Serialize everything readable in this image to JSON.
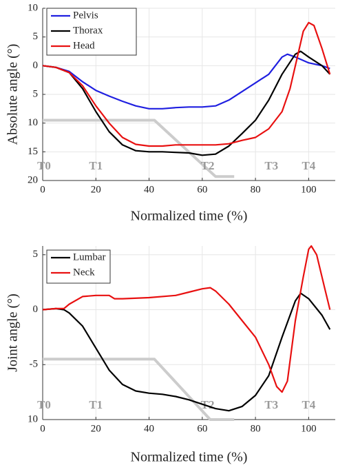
{
  "chart_data": [
    {
      "type": "line",
      "ylabel": "Absolute angle (°)",
      "xlabel": "Normalized time (%)",
      "xlim": [
        0,
        110
      ],
      "xticks": [
        0,
        20,
        40,
        60,
        80,
        100
      ],
      "ylim": [
        -20,
        10
      ],
      "yticks": [
        {
          "value": 10,
          "label": "10"
        },
        {
          "value": 5,
          "label": "5"
        },
        0,
        {
          "value": -5,
          "label": "5"
        },
        {
          "value": -10,
          "label": "10"
        },
        {
          "value": -15,
          "label": "15"
        },
        {
          "value": -20,
          "label": "20"
        }
      ],
      "grid": true,
      "legend": "upper left",
      "series": [
        {
          "name": "Pelvis",
          "color": "#1f1fe0",
          "x": [
            0,
            5,
            10,
            15,
            20,
            25,
            30,
            35,
            40,
            45,
            50,
            55,
            60,
            65,
            70,
            75,
            80,
            85,
            90,
            92,
            95,
            100,
            105,
            108
          ],
          "values": [
            0,
            -0.3,
            -1,
            -2.8,
            -4.3,
            -5.3,
            -6.2,
            -7,
            -7.5,
            -7.5,
            -7.3,
            -7.2,
            -7.2,
            -7,
            -6,
            -4.5,
            -3,
            -1.5,
            1.5,
            2,
            1.5,
            0.5,
            0,
            -0.5
          ]
        },
        {
          "name": "Thorax",
          "color": "#000000",
          "x": [
            0,
            5,
            10,
            15,
            20,
            25,
            30,
            35,
            40,
            45,
            50,
            55,
            60,
            65,
            70,
            75,
            80,
            85,
            90,
            95,
            97,
            100,
            105,
            108
          ],
          "values": [
            0,
            -0.3,
            -1.2,
            -4,
            -8,
            -11.5,
            -13.8,
            -14.8,
            -15,
            -15,
            -15.1,
            -15.2,
            -15.6,
            -15.4,
            -14,
            -11.8,
            -9.5,
            -6,
            -1.5,
            2,
            2.5,
            1.5,
            0,
            -1.5
          ]
        },
        {
          "name": "Head",
          "color": "#e81010",
          "x": [
            0,
            5,
            10,
            15,
            20,
            25,
            30,
            35,
            40,
            45,
            50,
            55,
            60,
            65,
            70,
            75,
            80,
            85,
            90,
            93,
            96,
            98,
            100,
            102,
            105,
            108
          ],
          "values": [
            0,
            -0.3,
            -1.2,
            -3.5,
            -7,
            -10,
            -12.5,
            -13.7,
            -14,
            -14,
            -13.8,
            -13.8,
            -13.8,
            -13.8,
            -13.6,
            -13,
            -12.5,
            -11,
            -8,
            -4,
            2,
            6,
            7.5,
            7,
            3,
            -1.5
          ]
        }
      ],
      "phase_line": {
        "color": "#cccccc",
        "x": [
          0,
          42,
          65,
          72
        ],
        "values": [
          -9.5,
          -9.5,
          -19.3,
          -19.3
        ]
      },
      "annotations": [
        {
          "text": "T0",
          "x": 0
        },
        {
          "text": "T1",
          "x": 20
        },
        {
          "text": "T2",
          "x": 62
        },
        {
          "text": "T3",
          "x": 86
        },
        {
          "text": "T4",
          "x": 100
        }
      ]
    },
    {
      "type": "line",
      "ylabel": "Joint angle (°)",
      "xlabel": "Normalized time (%)",
      "xlim": [
        0,
        110
      ],
      "xticks": [
        0,
        20,
        40,
        60,
        80,
        100
      ],
      "ylim": [
        -10,
        5.8
      ],
      "yticks": [
        5,
        0,
        -5,
        {
          "value": -10,
          "label": "10"
        }
      ],
      "grid": true,
      "legend": "upper left",
      "series": [
        {
          "name": "Lumbar",
          "color": "#000000",
          "x": [
            0,
            5,
            8,
            10,
            15,
            20,
            25,
            30,
            35,
            40,
            45,
            50,
            55,
            60,
            65,
            70,
            75,
            80,
            85,
            90,
            95,
            97,
            100,
            105,
            108
          ],
          "values": [
            0,
            0.1,
            0,
            -0.3,
            -1.5,
            -3.5,
            -5.5,
            -6.8,
            -7.4,
            -7.6,
            -7.7,
            -7.9,
            -8.2,
            -8.6,
            -9,
            -9.2,
            -8.8,
            -7.8,
            -6,
            -2.5,
            0.8,
            1.5,
            1,
            -0.5,
            -1.8
          ]
        },
        {
          "name": "Neck",
          "color": "#e81010",
          "x": [
            0,
            5,
            8,
            10,
            15,
            20,
            25,
            27,
            30,
            40,
            50,
            55,
            60,
            63,
            65,
            70,
            75,
            80,
            85,
            88,
            90,
            92,
            95,
            98,
            100,
            101,
            103,
            106,
            108
          ],
          "values": [
            0,
            0.1,
            0.1,
            0.5,
            1.2,
            1.3,
            1.3,
            1,
            1,
            1.1,
            1.3,
            1.6,
            1.9,
            2,
            1.7,
            0.5,
            -1,
            -2.5,
            -5,
            -7,
            -7.5,
            -6.5,
            -1,
            3,
            5.5,
            5.8,
            5,
            2,
            0
          ]
        }
      ],
      "phase_line": {
        "color": "#cccccc",
        "x": [
          0,
          42,
          63,
          72
        ],
        "values": [
          -4.5,
          -4.5,
          -10,
          -10
        ]
      },
      "annotations": [
        {
          "text": "T0",
          "x": 0
        },
        {
          "text": "T1",
          "x": 20
        },
        {
          "text": "T2",
          "x": 62
        },
        {
          "text": "T3",
          "x": 86
        },
        {
          "text": "T4",
          "x": 100
        }
      ]
    }
  ]
}
